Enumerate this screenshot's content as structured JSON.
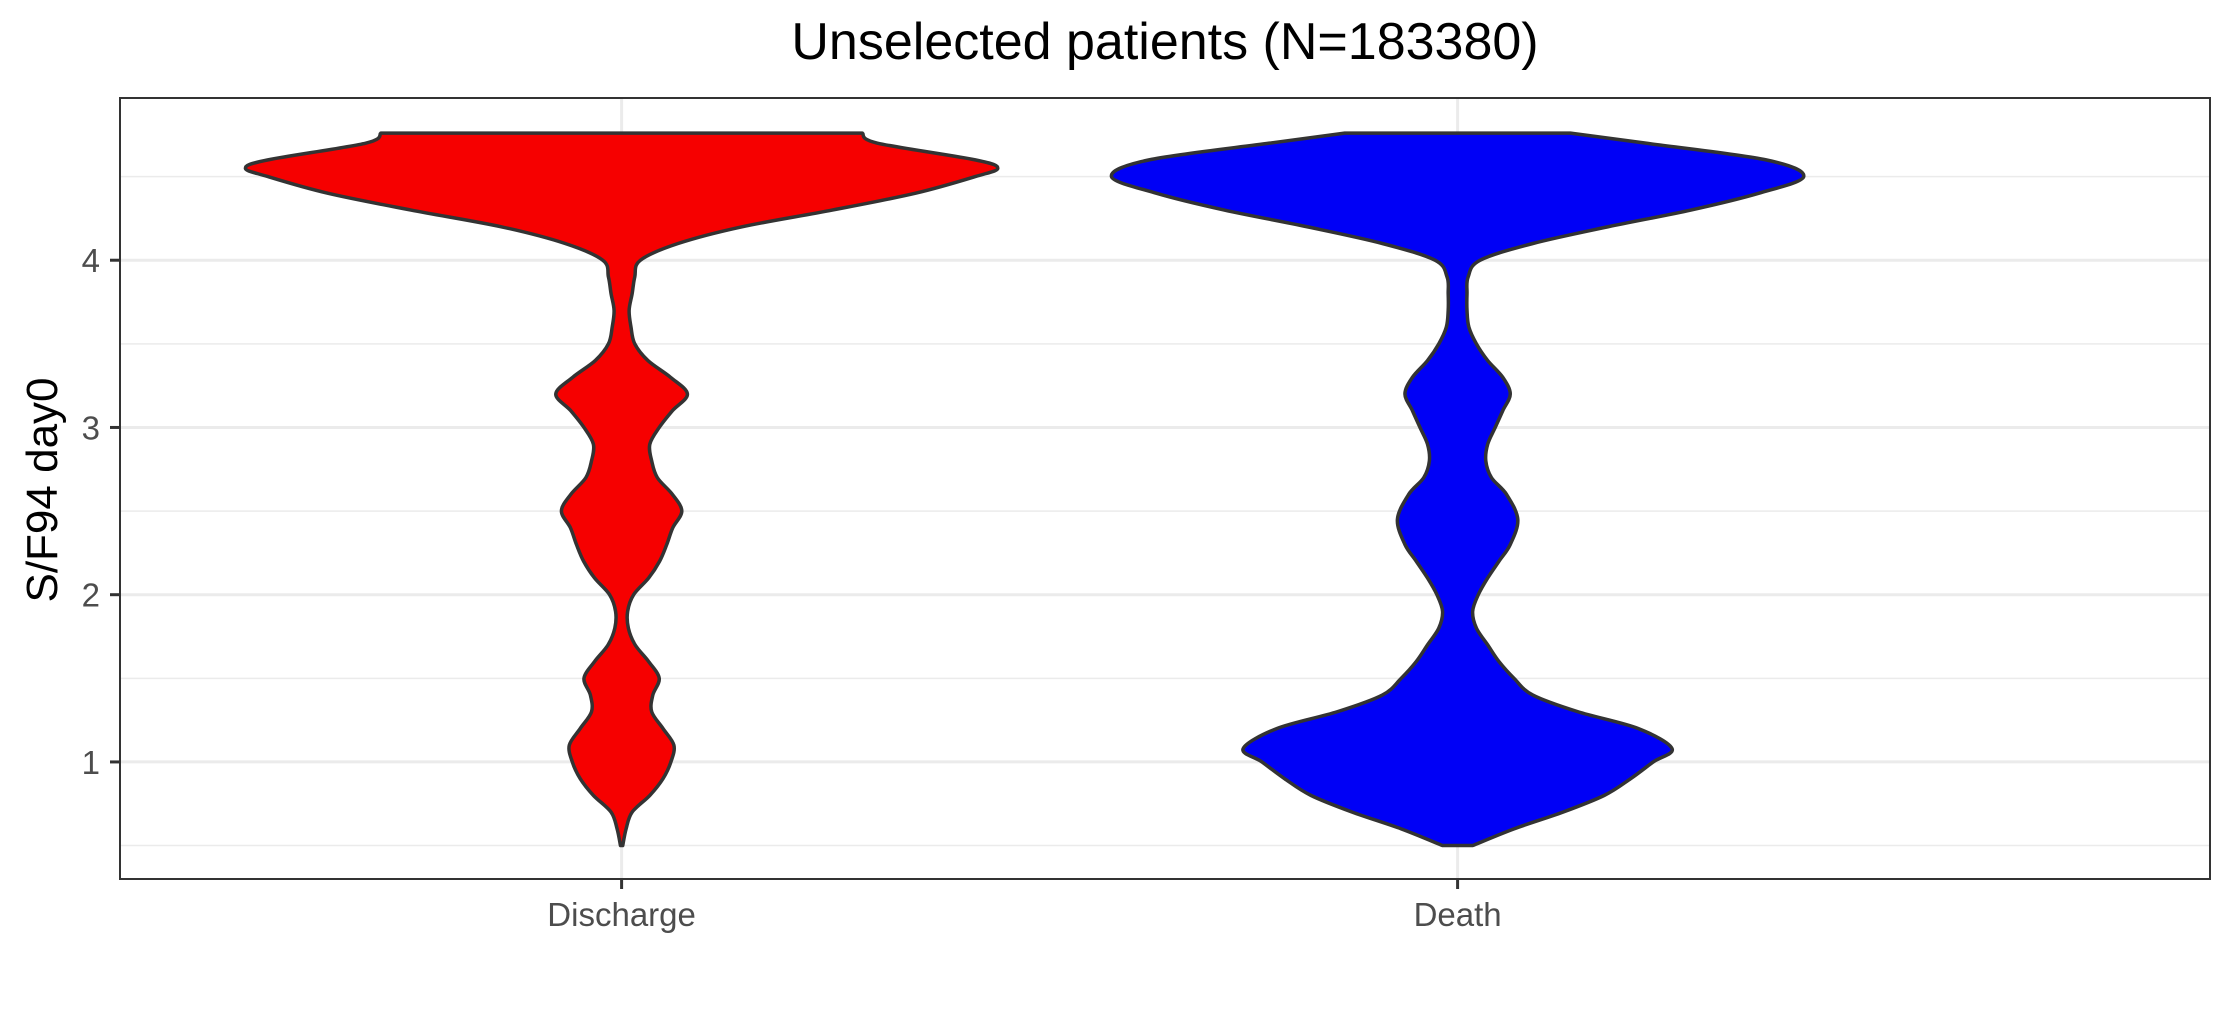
{
  "chart_data": {
    "type": "violin",
    "title": "Unselected patients (N=183380)",
    "xlabel": "",
    "ylabel": "S/F94 day0",
    "ylim": [
      0.3,
      4.97
    ],
    "yticks": [
      1,
      2,
      3,
      4
    ],
    "grid": true,
    "legend": "none",
    "categories": [
      "Discharge",
      "Death"
    ],
    "series": [
      {
        "category": "Discharge",
        "color": "#f60000",
        "y_range": [
          0.5,
          4.76
        ],
        "profile": [
          [
            0.5,
            0.003
          ],
          [
            0.6,
            0.012
          ],
          [
            0.7,
            0.028
          ],
          [
            0.8,
            0.075
          ],
          [
            0.9,
            0.11
          ],
          [
            1.0,
            0.131
          ],
          [
            1.1,
            0.139
          ],
          [
            1.2,
            0.11
          ],
          [
            1.3,
            0.08
          ],
          [
            1.4,
            0.083
          ],
          [
            1.5,
            0.1
          ],
          [
            1.6,
            0.072
          ],
          [
            1.7,
            0.036
          ],
          [
            1.8,
            0.018
          ],
          [
            1.9,
            0.016
          ],
          [
            2.0,
            0.032
          ],
          [
            2.1,
            0.072
          ],
          [
            2.2,
            0.101
          ],
          [
            2.3,
            0.12
          ],
          [
            2.4,
            0.136
          ],
          [
            2.5,
            0.16
          ],
          [
            2.6,
            0.135
          ],
          [
            2.7,
            0.095
          ],
          [
            2.8,
            0.08
          ],
          [
            2.9,
            0.075
          ],
          [
            3.0,
            0.1
          ],
          [
            3.1,
            0.135
          ],
          [
            3.2,
            0.175
          ],
          [
            3.3,
            0.13
          ],
          [
            3.4,
            0.07
          ],
          [
            3.5,
            0.035
          ],
          [
            3.6,
            0.025
          ],
          [
            3.7,
            0.02
          ],
          [
            3.8,
            0.028
          ],
          [
            3.9,
            0.035
          ],
          [
            4.0,
            0.05
          ],
          [
            4.1,
            0.15
          ],
          [
            4.2,
            0.32
          ],
          [
            4.3,
            0.56
          ],
          [
            4.4,
            0.78
          ],
          [
            4.5,
            0.94
          ],
          [
            4.55,
            1.0
          ],
          [
            4.6,
            0.94
          ],
          [
            4.7,
            0.68
          ],
          [
            4.76,
            0.64
          ]
        ]
      },
      {
        "category": "Death",
        "color": "#0000f6",
        "y_range": [
          0.5,
          4.76
        ],
        "profile": [
          [
            0.5,
            0.04
          ],
          [
            0.6,
            0.15
          ],
          [
            0.7,
            0.28
          ],
          [
            0.8,
            0.39
          ],
          [
            0.9,
            0.46
          ],
          [
            1.0,
            0.52
          ],
          [
            1.08,
            0.57
          ],
          [
            1.2,
            0.48
          ],
          [
            1.3,
            0.32
          ],
          [
            1.4,
            0.2
          ],
          [
            1.5,
            0.15
          ],
          [
            1.6,
            0.11
          ],
          [
            1.7,
            0.08
          ],
          [
            1.8,
            0.05
          ],
          [
            1.9,
            0.04
          ],
          [
            2.0,
            0.055
          ],
          [
            2.1,
            0.08
          ],
          [
            2.2,
            0.11
          ],
          [
            2.3,
            0.14
          ],
          [
            2.45,
            0.16
          ],
          [
            2.6,
            0.13
          ],
          [
            2.7,
            0.09
          ],
          [
            2.8,
            0.075
          ],
          [
            2.9,
            0.08
          ],
          [
            3.0,
            0.1
          ],
          [
            3.1,
            0.12
          ],
          [
            3.2,
            0.14
          ],
          [
            3.3,
            0.12
          ],
          [
            3.4,
            0.08
          ],
          [
            3.5,
            0.05
          ],
          [
            3.6,
            0.03
          ],
          [
            3.7,
            0.025
          ],
          [
            3.8,
            0.025
          ],
          [
            3.9,
            0.028
          ],
          [
            4.0,
            0.06
          ],
          [
            4.1,
            0.2
          ],
          [
            4.2,
            0.4
          ],
          [
            4.3,
            0.62
          ],
          [
            4.4,
            0.8
          ],
          [
            4.5,
            0.92
          ],
          [
            4.6,
            0.82
          ],
          [
            4.7,
            0.5
          ],
          [
            4.76,
            0.3
          ]
        ]
      }
    ]
  }
}
